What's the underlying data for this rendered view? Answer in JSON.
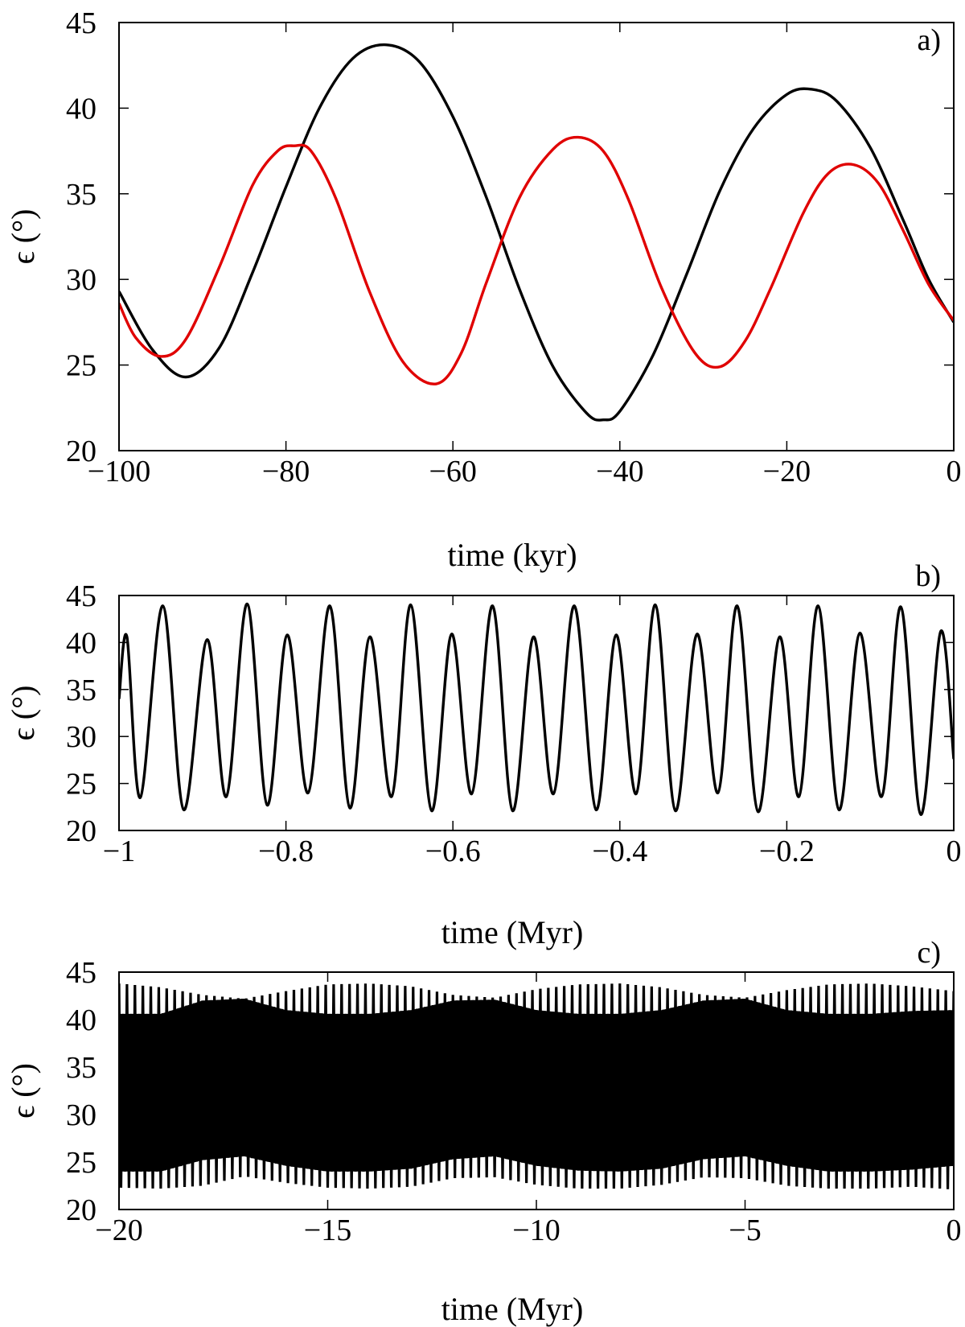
{
  "chart_data": [
    {
      "type": "line",
      "panel_label": "a)",
      "xlabel": "time (kyr)",
      "ylabel": "ϵ (°)",
      "xlim": [
        -100,
        0
      ],
      "ylim": [
        20,
        45
      ],
      "xticks": [
        -100,
        -80,
        -60,
        -40,
        -20,
        0
      ],
      "xtick_labels": [
        "−100",
        "−80",
        "−60",
        "−40",
        "−20",
        "0"
      ],
      "yticks": [
        20,
        25,
        30,
        35,
        40,
        45
      ],
      "ytick_labels": [
        "20",
        "25",
        "30",
        "35",
        "40",
        "45"
      ],
      "grid": false,
      "series": [
        {
          "color": "#000000",
          "x": [
            -100,
            -96,
            -92,
            -88,
            -84,
            -80,
            -76,
            -72,
            -68,
            -64,
            -60,
            -56,
            -52,
            -48,
            -44,
            -42,
            -40,
            -36,
            -32,
            -28,
            -24,
            -20,
            -17,
            -14,
            -10,
            -6,
            -3,
            0
          ],
          "y": [
            29.3,
            25.9,
            24.3,
            26.0,
            30.4,
            35.4,
            40.0,
            42.9,
            43.7,
            42.7,
            39.5,
            34.8,
            29.4,
            24.9,
            22.2,
            21.8,
            22.3,
            25.6,
            30.3,
            35.2,
            38.8,
            40.8,
            41.1,
            40.4,
            37.7,
            33.4,
            30.0,
            27.5
          ]
        },
        {
          "color": "#e00000",
          "x": [
            -100,
            -98,
            -95,
            -92,
            -88,
            -84,
            -81,
            -79,
            -77,
            -74,
            -70,
            -66,
            -62,
            -59,
            -56,
            -52,
            -48,
            -45,
            -42,
            -39,
            -35,
            -31,
            -28,
            -25,
            -22,
            -18,
            -15,
            -12,
            -9,
            -6,
            -3,
            0
          ],
          "y": [
            28.6,
            26.6,
            25.5,
            26.5,
            30.7,
            35.5,
            37.5,
            37.8,
            37.5,
            34.7,
            29.3,
            25.2,
            23.9,
            25.7,
            29.8,
            34.8,
            37.6,
            38.3,
            37.5,
            34.7,
            29.5,
            25.7,
            24.9,
            26.4,
            29.4,
            33.9,
            36.2,
            36.7,
            35.6,
            32.8,
            29.7,
            27.6
          ]
        }
      ]
    },
    {
      "type": "line",
      "panel_label": "b)",
      "xlabel": "time (Myr)",
      "ylabel": "ϵ (°)",
      "xlim": [
        -1,
        0
      ],
      "ylim": [
        20,
        45
      ],
      "xticks": [
        -1,
        -0.8,
        -0.6,
        -0.4,
        -0.2,
        0
      ],
      "xtick_labels": [
        "−1",
        "−0.8",
        "−0.6",
        "−0.4",
        "−0.2",
        "0"
      ],
      "yticks": [
        20,
        25,
        30,
        35,
        40,
        45
      ],
      "ytick_labels": [
        "20",
        "25",
        "30",
        "35",
        "40",
        "45"
      ],
      "grid": false,
      "series": [
        {
          "color": "#000000",
          "x": [
            -1.0,
            -0.9905,
            -0.9745,
            -0.9475,
            -0.9225,
            -0.8945,
            -0.8715,
            -0.8465,
            -0.8225,
            -0.7985,
            -0.7735,
            -0.7475,
            -0.7235,
            -0.6995,
            -0.6735,
            -0.6505,
            -0.6255,
            -0.6015,
            -0.5775,
            -0.5525,
            -0.5285,
            -0.5035,
            -0.4795,
            -0.4545,
            -0.4285,
            -0.4045,
            -0.3805,
            -0.3575,
            -0.3335,
            -0.3075,
            -0.2825,
            -0.2595,
            -0.2345,
            -0.2085,
            -0.1855,
            -0.1625,
            -0.1375,
            -0.1125,
            -0.0865,
            -0.0635,
            -0.0395,
            -0.0155,
            0.0
          ],
          "y": [
            34.0,
            40.6,
            23.5,
            43.9,
            22.2,
            40.3,
            23.6,
            44.1,
            22.7,
            40.8,
            24.0,
            43.9,
            22.4,
            40.6,
            23.6,
            44.0,
            22.1,
            40.9,
            23.9,
            43.9,
            22.1,
            40.6,
            23.9,
            43.9,
            22.2,
            40.8,
            23.9,
            44.0,
            22.1,
            40.9,
            24.0,
            43.9,
            22.0,
            40.6,
            23.6,
            43.9,
            22.2,
            41.0,
            23.6,
            43.8,
            21.7,
            41.2,
            27.6
          ]
        }
      ]
    },
    {
      "type": "line",
      "panel_label": "c)",
      "xlabel": "time (Myr)",
      "ylabel": "ϵ (°)",
      "xlim": [
        -20,
        0
      ],
      "ylim": [
        20,
        45
      ],
      "xticks": [
        -20,
        -15,
        -10,
        -5,
        0
      ],
      "xtick_labels": [
        "−20",
        "−15",
        "−10",
        "−5",
        "0"
      ],
      "yticks": [
        20,
        25,
        30,
        35,
        40,
        45
      ],
      "ytick_labels": [
        "20",
        "25",
        "30",
        "35",
        "40",
        "45"
      ],
      "grid": false,
      "series": [
        {
          "color": "#000000",
          "x": [
            -20,
            -19,
            -18,
            -17,
            -16,
            -15,
            -14,
            -13,
            -12,
            -11,
            -10,
            -9,
            -8,
            -7,
            -6,
            -5,
            -4,
            -3,
            -2,
            -1,
            0
          ],
          "y_max": [
            43.8,
            43.4,
            42.6,
            42.2,
            43.0,
            43.7,
            43.8,
            43.5,
            42.6,
            42.3,
            43.2,
            43.7,
            43.8,
            43.4,
            42.6,
            42.3,
            43.1,
            43.7,
            43.8,
            43.5,
            43.0
          ],
          "y_min": [
            22.3,
            22.2,
            22.5,
            23.5,
            22.8,
            22.3,
            22.2,
            22.4,
            23.3,
            23.4,
            22.6,
            22.2,
            22.2,
            22.6,
            23.4,
            23.3,
            22.5,
            22.2,
            22.2,
            22.4,
            22.1
          ],
          "inner_max": [
            40.6,
            40.6,
            42.0,
            42.2,
            41.0,
            40.6,
            40.6,
            41.0,
            42.0,
            42.1,
            41.0,
            40.6,
            40.6,
            41.0,
            42.0,
            42.2,
            41.0,
            40.6,
            40.6,
            40.9,
            41.0
          ],
          "inner_min": [
            24.0,
            24.0,
            25.2,
            25.6,
            24.6,
            24.0,
            24.0,
            24.3,
            25.3,
            25.6,
            24.6,
            24.1,
            24.0,
            24.3,
            25.3,
            25.6,
            24.6,
            24.0,
            24.0,
            24.2,
            24.6
          ]
        }
      ]
    }
  ]
}
